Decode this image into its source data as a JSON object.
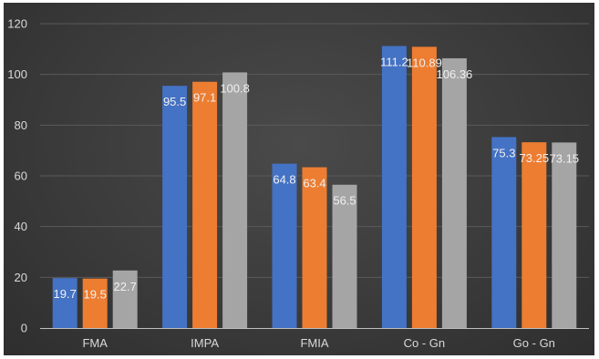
{
  "chart_data": {
    "type": "bar",
    "title": "",
    "xlabel": "",
    "ylabel": "",
    "categories": [
      "FMA",
      "IMPA",
      "FMIA",
      "Co - Gn",
      "Go - Gn"
    ],
    "series": [
      {
        "values": [
          19.7,
          95.5,
          64.8,
          111.2,
          75.3
        ],
        "color": "#4472c4"
      },
      {
        "values": [
          19.5,
          97.1,
          63.4,
          110.89,
          73.25
        ],
        "color": "#ed7d31"
      },
      {
        "values": [
          22.7,
          100.8,
          56.5,
          106.36,
          73.15
        ],
        "color": "#a5a5a5"
      }
    ],
    "data_labels": [
      [
        "19.7",
        "95.5",
        "64.8",
        "111.2",
        "75.3"
      ],
      [
        "19.5",
        "97.1",
        "63.4",
        "110.89",
        "73.25"
      ],
      [
        "22.7",
        "100.8",
        "56.5",
        "106.36",
        "73.15"
      ]
    ],
    "yticks": [
      "0",
      "20",
      "40",
      "60",
      "80",
      "100",
      "120"
    ],
    "ylim": [
      0,
      120
    ],
    "grid": true,
    "legend": "none"
  }
}
